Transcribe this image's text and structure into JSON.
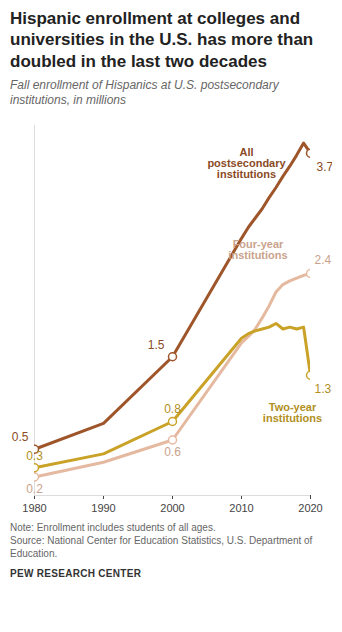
{
  "chart_data": {
    "type": "line",
    "title": "Hispanic enrollment at colleges and universities in the U.S. has more than doubled in the last two decades",
    "subtitle": "Fall enrollment of Hispanics at U.S. postsecondary institutions, in millions",
    "x": [
      1980,
      1990,
      2000,
      2010,
      2011,
      2012,
      2013,
      2014,
      2015,
      2016,
      2017,
      2018,
      2019,
      2020
    ],
    "series": [
      {
        "name": "All postsecondary institutions",
        "color": "#9e552a",
        "marker": "circle",
        "values": [
          0.5,
          0.78,
          1.5,
          2.78,
          2.9,
          3.0,
          3.1,
          3.22,
          3.33,
          3.45,
          3.56,
          3.68,
          3.81,
          3.7
        ],
        "value_labels": [
          "0.5",
          null,
          "1.5",
          null,
          null,
          null,
          null,
          null,
          null,
          null,
          null,
          null,
          null,
          "3.7"
        ]
      },
      {
        "name": "Four-year institutions",
        "color": "#e5b9a0",
        "marker": "circle",
        "values": [
          0.2,
          0.36,
          0.6,
          1.65,
          1.72,
          1.8,
          1.92,
          2.05,
          2.2,
          2.28,
          2.32,
          2.35,
          2.38,
          2.4
        ],
        "value_labels": [
          "0.2",
          null,
          "0.6",
          null,
          null,
          null,
          null,
          null,
          null,
          null,
          null,
          null,
          null,
          "2.4"
        ]
      },
      {
        "name": "Two-year institutions",
        "color": "#c9a227",
        "marker": "circle",
        "values": [
          0.3,
          0.45,
          0.8,
          1.7,
          1.75,
          1.78,
          1.8,
          1.82,
          1.86,
          1.8,
          1.82,
          1.8,
          1.82,
          1.3
        ],
        "value_labels": [
          "0.3",
          null,
          "0.8",
          null,
          null,
          null,
          null,
          null,
          null,
          null,
          null,
          null,
          null,
          "1.3"
        ]
      }
    ],
    "xlim": [
      1980,
      2020
    ],
    "xticks": [
      1980,
      1990,
      2000,
      2010,
      2020
    ],
    "ylim": [
      0,
      4
    ],
    "yticks": [],
    "tick_labels": "x",
    "grid": false,
    "note": "Note: Enrollment includes students of all ages.",
    "source": "Source: National Center for Education Statistics, U.S. Department of Education.",
    "credit": "PEW RESEARCH CENTER"
  }
}
